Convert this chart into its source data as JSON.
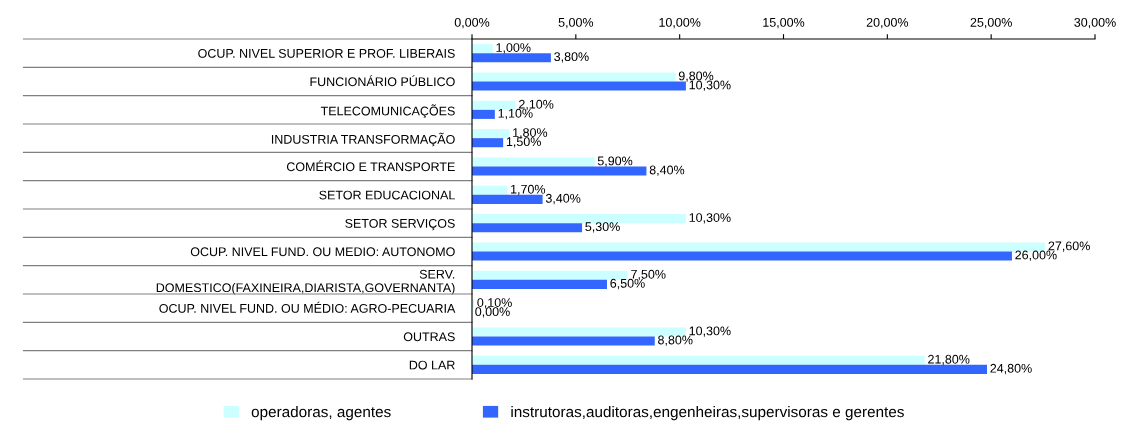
{
  "chart_data": {
    "type": "bar",
    "orientation": "horizontal",
    "categories": [
      "OCUP. NIVEL SUPERIOR E PROF. LIBERAIS",
      "FUNCIONÁRIO PÚBLICO",
      "TELECOMUNICAÇÕES",
      "INDUSTRIA TRANSFORMAÇÃO",
      "COMÉRCIO E TRANSPORTE",
      "SETOR EDUCACIONAL",
      "SETOR SERVIÇOS",
      "OCUP. NIVEL FUND. OU MEDIO: AUTONOMO",
      "SERV.\nDOMESTICO(FAXINEIRA,DIARISTA,GOVERNANTA)",
      "OCUP. NIVEL FUND. OU MÉDIO: AGRO-PECUARIA",
      "OUTRAS",
      "DO LAR"
    ],
    "series": [
      {
        "name": "operadoras, agentes",
        "color": "#ccffff",
        "values": [
          1.0,
          9.8,
          2.1,
          1.8,
          5.9,
          1.7,
          10.3,
          27.6,
          7.5,
          0.1,
          10.3,
          21.8
        ],
        "value_labels": [
          "1,00%",
          "9,80%",
          "2,10%",
          "1,80%",
          "5,90%",
          "1,70%",
          "10,30%",
          "27,60%",
          "7,50%",
          "0,10%",
          "10,30%",
          "21,80%"
        ]
      },
      {
        "name": "instrutoras,auditoras,engenheiras,supervisoras e gerentes",
        "color": "#3366ff",
        "values": [
          3.8,
          10.3,
          1.1,
          1.5,
          8.4,
          3.4,
          5.3,
          26.0,
          6.5,
          0.0,
          8.8,
          24.8
        ],
        "value_labels": [
          "3,80%",
          "10,30%",
          "1,10%",
          "1,50%",
          "8,40%",
          "3,40%",
          "5,30%",
          "26,00%",
          "6,50%",
          "0,00%",
          "8,80%",
          "24,80%"
        ]
      }
    ],
    "xlim": [
      0,
      30
    ],
    "xticks": [
      {
        "value": 0,
        "label": "0,00%"
      },
      {
        "value": 5,
        "label": "5,00%"
      },
      {
        "value": 10,
        "label": "10,00%"
      },
      {
        "value": 15,
        "label": "15,00%"
      },
      {
        "value": 20,
        "label": "20,00%"
      },
      {
        "value": 25,
        "label": "25,00%"
      },
      {
        "value": 30,
        "label": "30,00%"
      }
    ],
    "grid": false,
    "legend": "bottom"
  }
}
